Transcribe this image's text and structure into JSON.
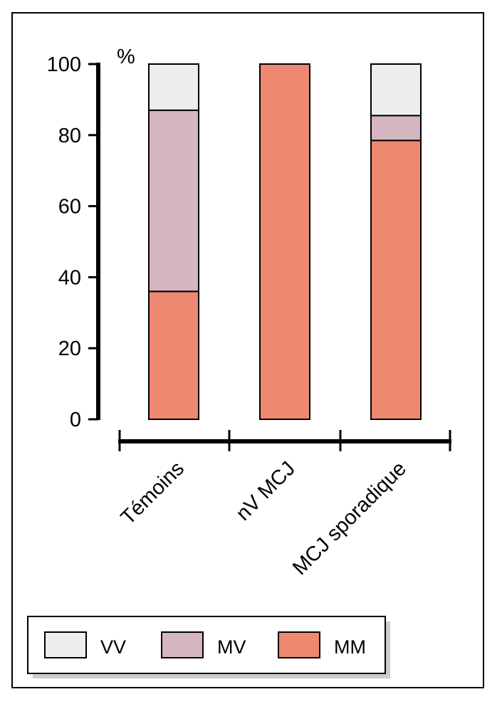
{
  "chart_data": {
    "type": "bar",
    "stacked": true,
    "unit": "%",
    "categories": [
      "Témoins",
      "nV MCJ",
      "MCJ sporadique"
    ],
    "series": [
      {
        "name": "MM",
        "values": [
          36,
          100,
          78.5
        ],
        "color": "#ef8870"
      },
      {
        "name": "MV",
        "values": [
          51,
          0,
          7
        ],
        "color": "#d5b5c0"
      },
      {
        "name": "VV",
        "values": [
          13,
          0,
          14.5
        ],
        "color": "#ededed"
      }
    ],
    "legend_order": [
      "VV",
      "MV",
      "MM"
    ],
    "ylim": [
      0,
      100
    ],
    "yticks": [
      "0",
      "20",
      "40",
      "60",
      "80",
      "100"
    ],
    "legend_position": "bottom"
  }
}
